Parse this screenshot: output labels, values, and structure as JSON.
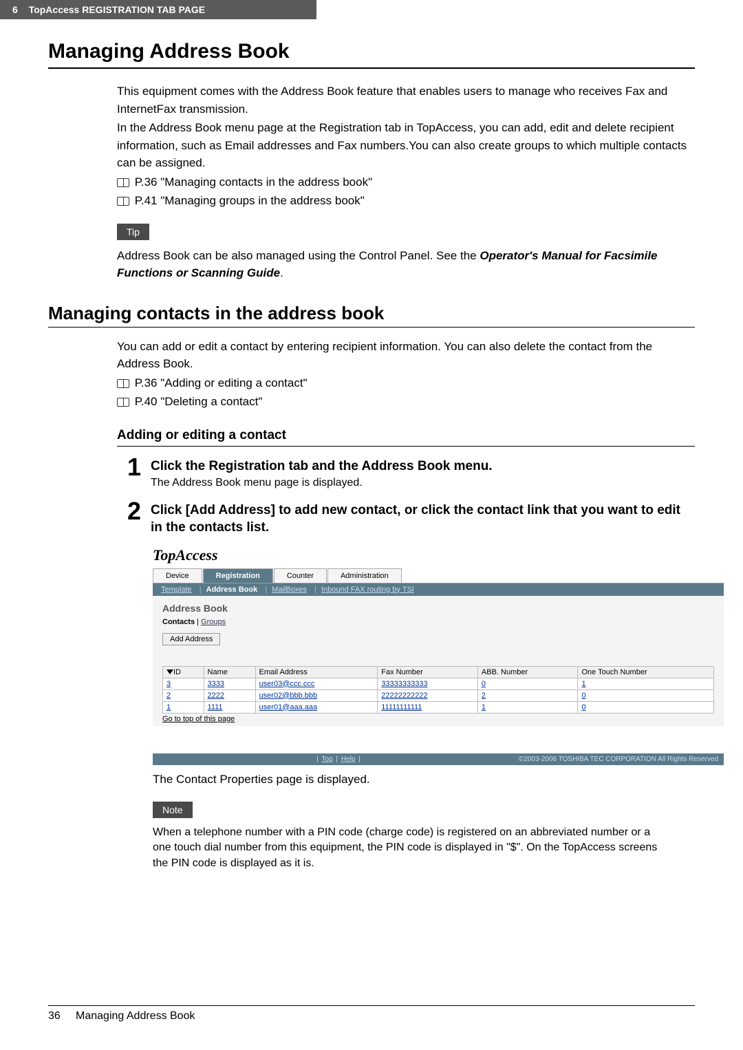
{
  "header": {
    "page_ref": "6",
    "chapter": "TopAccess REGISTRATION TAB PAGE"
  },
  "main_title": "Managing Address Book",
  "intro": {
    "p1": "This equipment comes with the Address Book feature that enables users to manage who receives Fax and InternetFax transmission.",
    "p2": "In the Address Book menu page at the Registration tab in TopAccess, you can add, edit and delete recipient information, such as Email addresses and Fax numbers.You can also create groups to which multiple contacts can be assigned.",
    "link1": "P.36 \"Managing contacts in the address book\"",
    "link2": "P.41 \"Managing groups in the address book\""
  },
  "tip_label": "Tip",
  "tip_text_a": "Address Book can be also managed using the Control Panel. See the ",
  "tip_text_b": "Operator's Manual for Facsimile Functions or Scanning Guide",
  "tip_text_c": ".",
  "sub_heading": "Managing contacts in the address book",
  "sub_intro": {
    "p1": "You can add or edit a contact by entering recipient information. You can also delete the contact from the Address Book.",
    "link1": "P.36 \"Adding or editing a contact\"",
    "link2": "P.40 \"Deleting a contact\""
  },
  "sub_sub_heading": "Adding or editing a contact",
  "steps": {
    "s1": {
      "num": "1",
      "title": "Click the Registration tab and the Address Book menu.",
      "desc": "The Address Book menu page is displayed."
    },
    "s2": {
      "num": "2",
      "title": "Click [Add Address] to add new contact, or click the contact link that you want to edit in the contacts list."
    }
  },
  "screenshot": {
    "logo": "TopAccess",
    "top_tabs": {
      "device": "Device",
      "registration": "Registration",
      "counter": "Counter",
      "admin": "Administration"
    },
    "sub_tabs": {
      "template": "Template",
      "addressbook": "Address Book",
      "mailboxes": "MailBoxes",
      "inbound": "Inbound FAX routing by TSI"
    },
    "section_title": "Address Book",
    "contacts_label": "Contacts",
    "groups_label": "Groups",
    "add_btn": "Add Address",
    "table": {
      "headers": {
        "id": "ID",
        "name": "Name",
        "email": "Email Address",
        "fax": "Fax Number",
        "abb": "ABB. Number",
        "onetouch": "One Touch Number"
      },
      "rows": [
        {
          "id": "3",
          "name": "3333",
          "email": "user03@ccc.ccc",
          "fax": "33333333333",
          "abb": "0",
          "onetouch": "1"
        },
        {
          "id": "2",
          "name": "2222",
          "email": "user02@bbb.bbb",
          "fax": "22222222222",
          "abb": "2",
          "onetouch": "0"
        },
        {
          "id": "1",
          "name": "1111",
          "email": "user01@aaa.aaa",
          "fax": "11111111111",
          "abb": "1",
          "onetouch": "0"
        }
      ]
    },
    "go_top": "Go to top of this page",
    "footer_links": {
      "top": "Top",
      "help": "Help"
    },
    "copyright": "©2003-2006 TOSHIBA TEC CORPORATION All Rights Reserved"
  },
  "after_shot": "The Contact Properties page is displayed.",
  "note_label": "Note",
  "note_text": "When a telephone number with a PIN code (charge code) is registered on an abbreviated number or a one touch dial number from this equipment, the PIN code is displayed in \"$\". On the TopAccess screens the PIN code is displayed as it is.",
  "footer": {
    "page": "36",
    "title": "Managing Address Book"
  }
}
